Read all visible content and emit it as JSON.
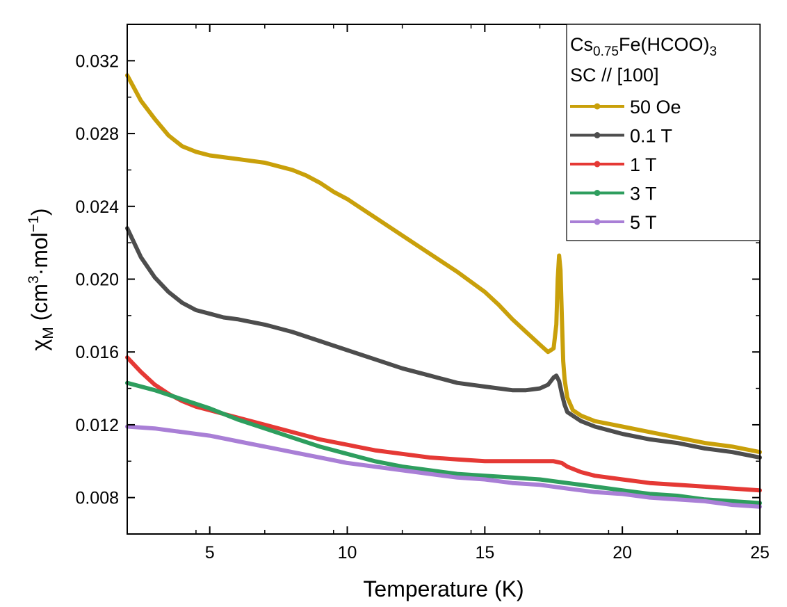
{
  "chart_data": {
    "type": "line",
    "xlabel": "Temperature (K)",
    "ylabel": {
      "base": "χ",
      "sub": "M",
      "mid": " (cm",
      "sup1": "3",
      "mid2": "·mol",
      "sup2": "−1",
      "end": ")"
    },
    "xlim": [
      2,
      25
    ],
    "ylim": [
      0.006,
      0.034
    ],
    "xticks": [
      5,
      10,
      15,
      20,
      25
    ],
    "xtick_labels": [
      "5",
      "10",
      "15",
      "20",
      "25"
    ],
    "yticks": [
      0.008,
      0.012,
      0.016,
      0.02,
      0.024,
      0.028,
      0.032
    ],
    "ytick_labels": [
      "0.008",
      "0.012",
      "0.016",
      "0.020",
      "0.024",
      "0.028",
      "0.032"
    ],
    "legend_position": "top-right",
    "legend_header": [
      {
        "pre": "Cs",
        "sub": "0.75",
        "post": "Fe(HCOO)",
        "sub2": "3"
      },
      {
        "pre": "SC // [100]",
        "sub": "",
        "post": "",
        "sub2": ""
      }
    ],
    "series": [
      {
        "name": "50 Oe",
        "color": "#c9a00a",
        "x": [
          2.0,
          2.5,
          3.0,
          3.5,
          4.0,
          4.5,
          5.0,
          5.5,
          6.0,
          6.5,
          7.0,
          7.5,
          8.0,
          8.5,
          9.0,
          9.5,
          10.0,
          11.0,
          12.0,
          13.0,
          14.0,
          15.0,
          15.5,
          16.0,
          16.5,
          17.0,
          17.3,
          17.5,
          17.6,
          17.65,
          17.7,
          17.75,
          17.8,
          17.85,
          17.9,
          18.0,
          18.2,
          18.5,
          19.0,
          20.0,
          21.0,
          22.0,
          23.0,
          24.0,
          25.0
        ],
        "y": [
          0.0312,
          0.0298,
          0.0288,
          0.0279,
          0.0273,
          0.027,
          0.0268,
          0.0267,
          0.0266,
          0.0265,
          0.0264,
          0.0262,
          0.026,
          0.0257,
          0.0253,
          0.0248,
          0.0244,
          0.0234,
          0.0224,
          0.0214,
          0.0204,
          0.0193,
          0.0186,
          0.0178,
          0.0171,
          0.0164,
          0.016,
          0.0162,
          0.0175,
          0.02,
          0.0213,
          0.0205,
          0.018,
          0.0155,
          0.0145,
          0.0135,
          0.0128,
          0.0125,
          0.0122,
          0.0119,
          0.0116,
          0.0113,
          0.011,
          0.0108,
          0.0105
        ]
      },
      {
        "name": "0.1 T",
        "color": "#4d4d4d",
        "x": [
          2.0,
          2.5,
          3.0,
          3.5,
          4.0,
          4.5,
          5.0,
          5.5,
          6.0,
          7.0,
          8.0,
          9.0,
          10.0,
          11.0,
          12.0,
          13.0,
          14.0,
          15.0,
          16.0,
          16.5,
          17.0,
          17.3,
          17.5,
          17.6,
          17.7,
          17.8,
          17.9,
          18.0,
          18.5,
          19.0,
          20.0,
          21.0,
          22.0,
          23.0,
          24.0,
          25.0
        ],
        "y": [
          0.0228,
          0.0212,
          0.0201,
          0.0193,
          0.0187,
          0.0183,
          0.0181,
          0.0179,
          0.0178,
          0.0175,
          0.0171,
          0.0166,
          0.0161,
          0.0156,
          0.0151,
          0.0147,
          0.0143,
          0.0141,
          0.0139,
          0.0139,
          0.014,
          0.0142,
          0.0146,
          0.0147,
          0.0144,
          0.0137,
          0.0131,
          0.0127,
          0.0122,
          0.0119,
          0.0115,
          0.0112,
          0.011,
          0.0107,
          0.0105,
          0.0102
        ]
      },
      {
        "name": "1 T",
        "color": "#e53935",
        "x": [
          2.0,
          2.5,
          3.0,
          3.5,
          4.0,
          4.5,
          5.0,
          6.0,
          7.0,
          8.0,
          9.0,
          10.0,
          11.0,
          12.0,
          13.0,
          14.0,
          15.0,
          16.0,
          17.0,
          17.5,
          17.8,
          18.0,
          18.5,
          19.0,
          20.0,
          21.0,
          22.0,
          23.0,
          24.0,
          25.0
        ],
        "y": [
          0.0157,
          0.0149,
          0.0142,
          0.0137,
          0.0133,
          0.013,
          0.0128,
          0.0124,
          0.012,
          0.0116,
          0.0112,
          0.0109,
          0.0106,
          0.0104,
          0.0102,
          0.0101,
          0.01,
          0.01,
          0.01,
          0.01,
          0.0099,
          0.0097,
          0.0094,
          0.0092,
          0.009,
          0.0088,
          0.0087,
          0.0086,
          0.0085,
          0.0084
        ]
      },
      {
        "name": "3 T",
        "color": "#2e9e5e",
        "x": [
          2.0,
          3.0,
          4.0,
          5.0,
          6.0,
          7.0,
          8.0,
          9.0,
          10.0,
          11.0,
          12.0,
          13.0,
          14.0,
          15.0,
          16.0,
          17.0,
          18.0,
          19.0,
          20.0,
          21.0,
          22.0,
          23.0,
          24.0,
          25.0
        ],
        "y": [
          0.0143,
          0.0139,
          0.0134,
          0.0129,
          0.0123,
          0.0118,
          0.0113,
          0.0108,
          0.0104,
          0.01,
          0.0097,
          0.0095,
          0.0093,
          0.0092,
          0.0091,
          0.009,
          0.0088,
          0.0086,
          0.0084,
          0.0082,
          0.0081,
          0.0079,
          0.0078,
          0.0077
        ]
      },
      {
        "name": "5 T",
        "color": "#a97fd6",
        "x": [
          2.0,
          3.0,
          4.0,
          5.0,
          6.0,
          7.0,
          8.0,
          9.0,
          10.0,
          11.0,
          12.0,
          13.0,
          14.0,
          15.0,
          16.0,
          17.0,
          18.0,
          19.0,
          20.0,
          21.0,
          22.0,
          23.0,
          24.0,
          25.0
        ],
        "y": [
          0.0119,
          0.0118,
          0.0116,
          0.0114,
          0.0111,
          0.0108,
          0.0105,
          0.0102,
          0.0099,
          0.0097,
          0.0095,
          0.0093,
          0.0091,
          0.009,
          0.0088,
          0.0087,
          0.0085,
          0.0083,
          0.0082,
          0.008,
          0.0079,
          0.0078,
          0.0076,
          0.0075
        ]
      }
    ]
  }
}
